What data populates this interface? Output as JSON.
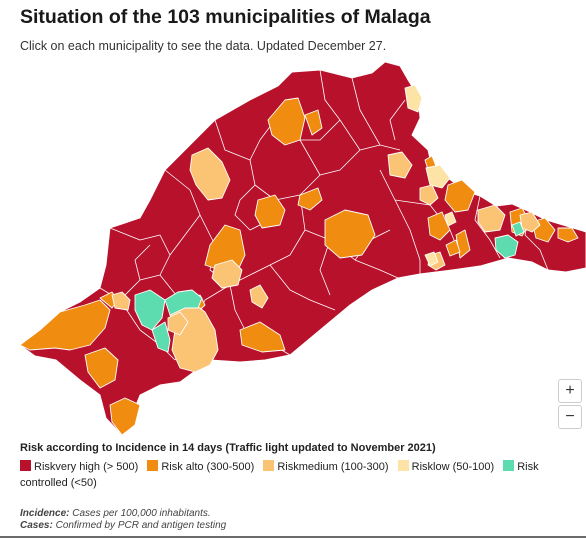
{
  "header": {
    "title": "Situation of the 103 municipalities of Malaga",
    "subtitle": "Click on each municipality to see the data. Updated December 27."
  },
  "colors": {
    "very_high": "#b8112b",
    "alto": "#f08c0f",
    "medium": "#fbc374",
    "low": "#fde4a6",
    "controlled": "#5ddcb0"
  },
  "legend": {
    "title": "Risk according to Incidence in 14 days (Traffic light updated to November 2021)",
    "items": [
      {
        "label": "Riskvery high (> 500)",
        "color": "#b8112b"
      },
      {
        "label": "Risk alto (300-500)",
        "color": "#f08c0f"
      },
      {
        "label": "Riskmedium (100-300)",
        "color": "#fbc374"
      },
      {
        "label": "Risklow (50-100)",
        "color": "#fde4a6"
      },
      {
        "label": "Risk controlled (<50)",
        "color": "#5ddcb0"
      }
    ]
  },
  "notes": {
    "incidence_label": "Incidence:",
    "incidence_text": " Cases per 100,000 inhabitants.",
    "cases_label": "Cases:",
    "cases_text": " Confirmed by PCR and antigen testing"
  },
  "zoom": {
    "in": "+",
    "out": "−"
  }
}
